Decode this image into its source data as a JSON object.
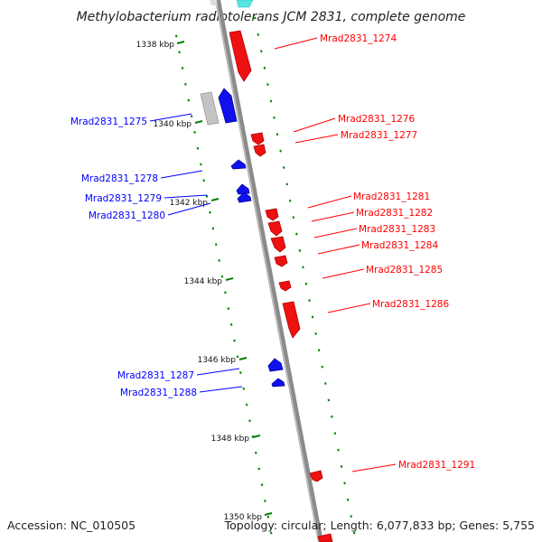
{
  "title": "Methylobacterium radiotolerans JCM 2831, complete genome",
  "accession": "Accession: NC_010505",
  "topology": "Topology: circular; Length: 6,077,833 bp; Genes: 5,755",
  "colors": {
    "forward_gene": "#ff0000",
    "reverse_gene": "#0000ff",
    "other_feature": "#bbbbbb",
    "rna_feature": "#55e5e5",
    "backbone": "#888888",
    "tick": "#008000"
  },
  "ruler": [
    {
      "position_kbp": 1338,
      "label": "1338 kbp"
    },
    {
      "position_kbp": 1340,
      "label": "1340 kbp"
    },
    {
      "position_kbp": 1342,
      "label": "1342 kbp"
    },
    {
      "position_kbp": 1344,
      "label": "1344 kbp"
    },
    {
      "position_kbp": 1346,
      "label": "1346 kbp"
    },
    {
      "position_kbp": 1348,
      "label": "1348 kbp"
    },
    {
      "position_kbp": 1350,
      "label": "1350 kbp"
    }
  ],
  "forward_genes": [
    {
      "name": "Mrad2831_1274"
    },
    {
      "name": "Mrad2831_1276"
    },
    {
      "name": "Mrad2831_1277"
    },
    {
      "name": "Mrad2831_1281"
    },
    {
      "name": "Mrad2831_1282"
    },
    {
      "name": "Mrad2831_1283"
    },
    {
      "name": "Mrad2831_1284"
    },
    {
      "name": "Mrad2831_1285"
    },
    {
      "name": "Mrad2831_1286"
    },
    {
      "name": "Mrad2831_1291"
    }
  ],
  "reverse_genes": [
    {
      "name": "Mrad2831_1275"
    },
    {
      "name": "Mrad2831_1278"
    },
    {
      "name": "Mrad2831_1279"
    },
    {
      "name": "Mrad2831_1280"
    },
    {
      "name": "Mrad2831_1287"
    },
    {
      "name": "Mrad2831_1288"
    }
  ]
}
